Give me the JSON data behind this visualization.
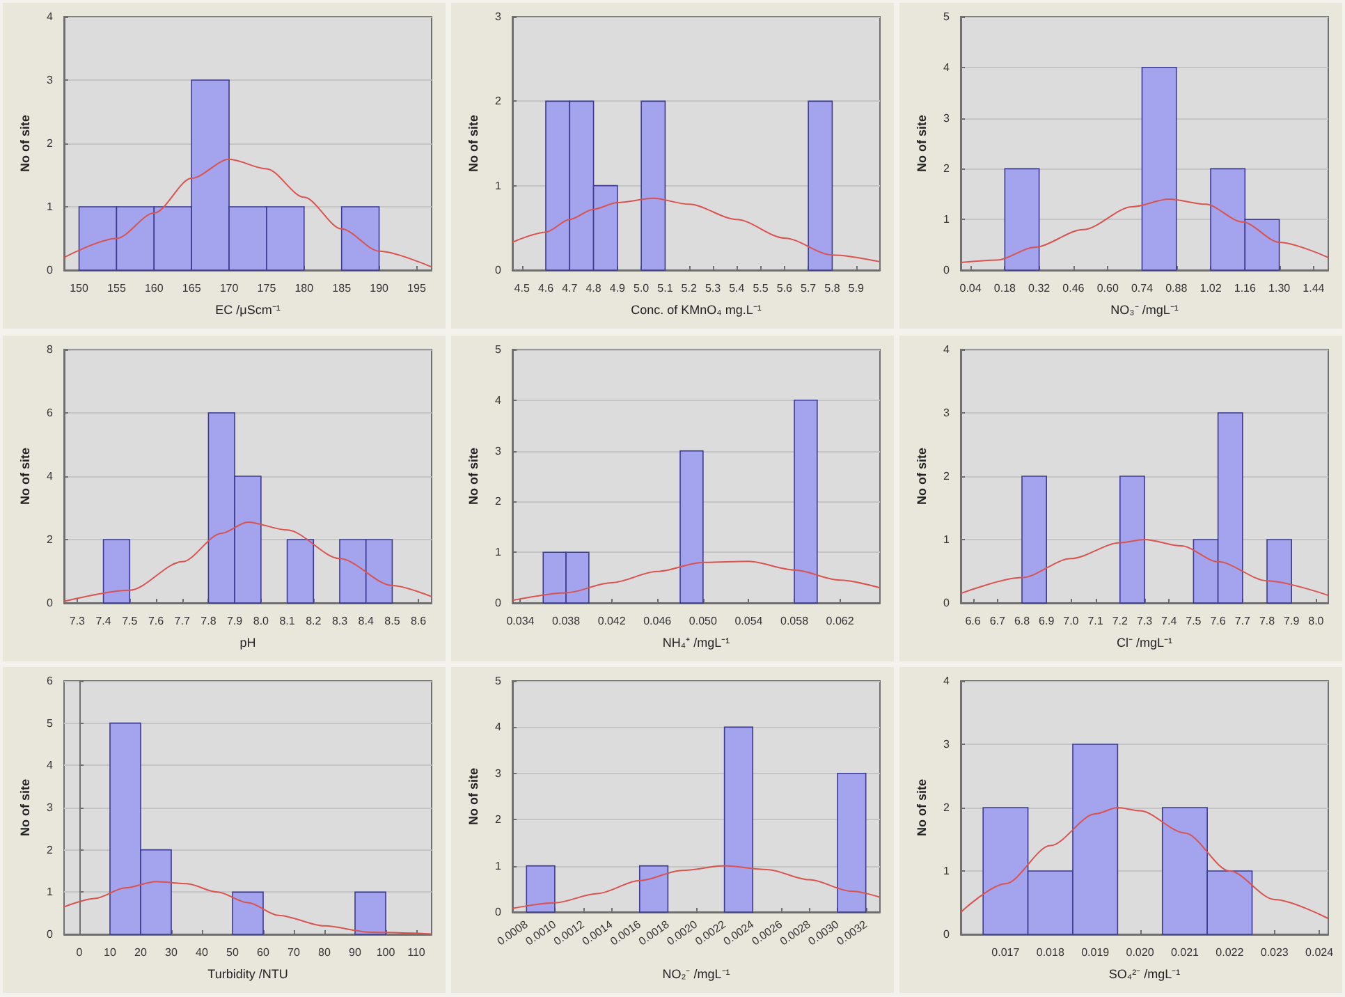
{
  "chart_data": [
    {
      "type": "histogram",
      "xlabel": "EC /μScm⁻¹",
      "ylabel": "No of site",
      "grid": "y",
      "xlim": [
        148,
        197
      ],
      "xticks": [
        150,
        155,
        160,
        165,
        170,
        175,
        180,
        185,
        190,
        195
      ],
      "ylim": [
        0,
        4
      ],
      "yticks": [
        0,
        1,
        2,
        3,
        4
      ],
      "series": [
        {
          "type": "histogram",
          "color": "#a3a3ee",
          "bins": [
            150,
            155,
            160,
            165,
            170,
            175,
            180,
            185,
            190
          ],
          "values": [
            1,
            1,
            1,
            3,
            1,
            1,
            0,
            1
          ]
        },
        {
          "type": "line",
          "color": "#d9534f",
          "x": [
            148,
            155,
            160,
            165,
            170,
            175,
            180,
            185,
            190,
            197
          ],
          "values": [
            0.2,
            0.5,
            0.9,
            1.45,
            1.75,
            1.6,
            1.15,
            0.65,
            0.3,
            0.05
          ]
        }
      ]
    },
    {
      "type": "histogram",
      "xlabel": "Conc. of KMnO₄ mg.L⁻¹",
      "ylabel": "No of site",
      "grid": "y",
      "xlim": [
        4.46,
        6.0
      ],
      "xticks": [
        4.5,
        4.6,
        4.7,
        4.8,
        4.9,
        {
          "value": 5,
          "label": "5.0"
        },
        5.1,
        5.2,
        5.3,
        5.4,
        5.5,
        5.6,
        5.7,
        5.8,
        5.9
      ],
      "ylim": [
        0,
        3
      ],
      "yticks": [
        0,
        1,
        2,
        3
      ],
      "series": [
        {
          "type": "histogram",
          "color": "#a3a3ee",
          "bins": [
            4.6,
            4.7,
            4.8,
            4.9,
            5.0,
            5.1,
            5.2,
            5.3,
            5.4,
            5.5,
            5.6,
            5.7,
            5.8
          ],
          "values": [
            2,
            2,
            1,
            0,
            2,
            0,
            0,
            0,
            0,
            0,
            0,
            2
          ]
        },
        {
          "type": "line",
          "color": "#d9534f",
          "x": [
            4.46,
            4.6,
            4.7,
            4.8,
            4.9,
            5.05,
            5.2,
            5.4,
            5.6,
            5.8,
            6.0
          ],
          "values": [
            0.33,
            0.45,
            0.6,
            0.72,
            0.8,
            0.85,
            0.78,
            0.6,
            0.38,
            0.18,
            0.1
          ]
        }
      ]
    },
    {
      "type": "histogram",
      "xlabel": "NO₃⁻ /mgL⁻¹",
      "ylabel": "No of site",
      "grid": "y",
      "xlim": [
        0,
        1.5
      ],
      "xticks": [
        0.04,
        0.18,
        0.32,
        0.46,
        {
          "value": 0.6,
          "label": "0.60"
        },
        0.74,
        0.88,
        1.02,
        1.16,
        {
          "value": 1.3,
          "label": "1.30"
        },
        1.44
      ],
      "ylim": [
        0,
        5
      ],
      "yticks": [
        0,
        1,
        2,
        3,
        4,
        5
      ],
      "series": [
        {
          "type": "histogram",
          "color": "#a3a3ee",
          "bins": [
            0.18,
            0.32,
            0.46,
            0.6,
            0.74,
            0.88,
            1.02,
            1.16,
            1.3
          ],
          "values": [
            2,
            0,
            0,
            0,
            4,
            0,
            2,
            1
          ]
        },
        {
          "type": "line",
          "color": "#d9534f",
          "x": [
            0,
            0.15,
            0.3,
            0.5,
            0.7,
            0.85,
            1.0,
            1.15,
            1.3,
            1.5
          ],
          "values": [
            0.15,
            0.2,
            0.45,
            0.8,
            1.25,
            1.4,
            1.3,
            0.95,
            0.55,
            0.25
          ]
        }
      ]
    },
    {
      "type": "histogram",
      "xlabel": "pH",
      "ylabel": "No of site",
      "grid": "y",
      "xlim": [
        7.25,
        8.65
      ],
      "xticks": [
        7.3,
        7.4,
        7.5,
        7.6,
        7.7,
        7.8,
        7.9,
        {
          "value": 8,
          "label": "8.0"
        },
        8.1,
        8.2,
        8.3,
        8.4,
        8.5,
        8.6
      ],
      "ylim": [
        0,
        8
      ],
      "yticks": [
        0,
        2,
        4,
        6,
        8
      ],
      "series": [
        {
          "type": "histogram",
          "color": "#a3a3ee",
          "bins": [
            7.4,
            7.5,
            7.6,
            7.7,
            7.8,
            7.9,
            8.0,
            8.1,
            8.2,
            8.3,
            8.4,
            8.5
          ],
          "values": [
            2,
            0,
            0,
            0,
            6,
            4,
            0,
            2,
            0,
            2,
            2
          ]
        },
        {
          "type": "line",
          "color": "#d9534f",
          "x": [
            7.25,
            7.5,
            7.7,
            7.85,
            7.95,
            8.1,
            8.3,
            8.5,
            8.65
          ],
          "values": [
            0.05,
            0.4,
            1.3,
            2.2,
            2.55,
            2.3,
            1.4,
            0.55,
            0.2
          ]
        }
      ]
    },
    {
      "type": "histogram",
      "xlabel": "NH₄⁺ /mgL⁻¹",
      "ylabel": "No of site",
      "grid": "y",
      "xlim": [
        0.0333,
        0.0655
      ],
      "xticks": [
        0.034,
        0.038,
        0.042,
        0.046,
        {
          "value": 0.05,
          "label": "0.050"
        },
        0.054,
        0.058,
        0.062
      ],
      "ylim": [
        0,
        5
      ],
      "yticks": [
        0,
        1,
        2,
        3,
        4,
        5
      ],
      "series": [
        {
          "type": "histogram",
          "color": "#a3a3ee",
          "bins": [
            0.036,
            0.038,
            0.04,
            0.042,
            0.044,
            0.046,
            0.048,
            0.05,
            0.052,
            0.054,
            0.056,
            0.058,
            0.06
          ],
          "values": [
            1,
            1,
            0,
            0,
            0,
            0,
            3,
            0,
            0,
            0,
            0,
            4
          ]
        },
        {
          "type": "line",
          "color": "#d9534f",
          "x": [
            0.0333,
            0.038,
            0.042,
            0.046,
            0.05,
            0.054,
            0.058,
            0.062,
            0.0655
          ],
          "values": [
            0.05,
            0.2,
            0.4,
            0.62,
            0.8,
            0.82,
            0.65,
            0.45,
            0.3
          ]
        }
      ]
    },
    {
      "type": "histogram",
      "xlabel": "Cl⁻ /mgL⁻¹",
      "ylabel": "No of site",
      "grid": "y",
      "xlim": [
        6.55,
        8.05
      ],
      "xticks": [
        6.6,
        6.7,
        6.8,
        6.9,
        {
          "value": 7,
          "label": "7.0"
        },
        7.1,
        7.2,
        7.3,
        7.4,
        7.5,
        7.6,
        7.7,
        7.8,
        7.9,
        {
          "value": 8,
          "label": "8.0"
        }
      ],
      "ylim": [
        0,
        4
      ],
      "yticks": [
        0,
        1,
        2,
        3,
        4
      ],
      "series": [
        {
          "type": "histogram",
          "color": "#a3a3ee",
          "bins": [
            6.8,
            6.9,
            7.0,
            7.1,
            7.2,
            7.3,
            7.4,
            7.5,
            7.6,
            7.7,
            7.8,
            7.9
          ],
          "values": [
            2,
            0,
            0,
            0,
            2,
            0,
            0,
            1,
            3,
            0,
            1
          ]
        },
        {
          "type": "line",
          "color": "#d9534f",
          "x": [
            6.55,
            6.8,
            7.0,
            7.2,
            7.3,
            7.45,
            7.6,
            7.8,
            8.05
          ],
          "values": [
            0.15,
            0.4,
            0.7,
            0.95,
            1.0,
            0.9,
            0.65,
            0.35,
            0.12
          ]
        }
      ]
    },
    {
      "type": "histogram",
      "xlabel": "Turbidity /NTU",
      "ylabel": "No of site",
      "grid": "y",
      "xlim": [
        -5,
        115
      ],
      "xticks": [
        0,
        10,
        20,
        30,
        40,
        50,
        60,
        70,
        80,
        90,
        100,
        110
      ],
      "ylim": [
        0,
        6
      ],
      "yticks": [
        0,
        1,
        2,
        3,
        4,
        5,
        6
      ],
      "series": [
        {
          "type": "histogram",
          "color": "#a3a3ee",
          "bins": [
            10,
            20,
            30,
            40,
            50,
            60,
            70,
            80,
            90,
            100
          ],
          "values": [
            5,
            2,
            0,
            0,
            1,
            0,
            0,
            0,
            1
          ]
        },
        {
          "type": "line",
          "color": "#d9534f",
          "x": [
            -5,
            5,
            15,
            25,
            35,
            45,
            55,
            65,
            80,
            95,
            115
          ],
          "values": [
            0.65,
            0.85,
            1.1,
            1.25,
            1.2,
            1.0,
            0.75,
            0.45,
            0.2,
            0.05,
            0.01
          ]
        }
      ]
    },
    {
      "type": "histogram",
      "xlabel": "NO₂⁻ /mgL⁻¹",
      "ylabel": "No of site",
      "grid": "y",
      "xlim": [
        0.0007,
        0.0033
      ],
      "xticks": [
        0.0008,
        {
          "value": 0.001,
          "label": "0.0010"
        },
        0.0012,
        0.0014,
        0.0016,
        0.0018,
        {
          "value": 0.002,
          "label": "0.0020"
        },
        0.0022,
        0.0024,
        0.0026,
        0.0028,
        {
          "value": 0.003,
          "label": "0.0030"
        },
        0.0032
      ],
      "ylim": [
        0,
        5
      ],
      "yticks": [
        0,
        1,
        2,
        3,
        4,
        5
      ],
      "series": [
        {
          "type": "histogram",
          "color": "#a3a3ee",
          "bins": [
            0.0008,
            0.001,
            0.0012,
            0.0014,
            0.0016,
            0.0018,
            0.002,
            0.0022,
            0.0024,
            0.0026,
            0.0028,
            0.003,
            0.0032
          ],
          "values": [
            1,
            0,
            0,
            0,
            1,
            0,
            0,
            4,
            0,
            0,
            0,
            3
          ]
        },
        {
          "type": "line",
          "color": "#d9534f",
          "x": [
            0.0007,
            0.001,
            0.0013,
            0.0016,
            0.0019,
            0.0022,
            0.0025,
            0.0028,
            0.0031,
            0.0033
          ],
          "values": [
            0.08,
            0.2,
            0.4,
            0.68,
            0.9,
            1.0,
            0.92,
            0.7,
            0.45,
            0.32
          ]
        }
      ]
    },
    {
      "type": "histogram",
      "xlabel": "SO₄²⁻ /mgL⁻¹",
      "ylabel": "No of site",
      "grid": "y",
      "xlim": [
        0.016,
        0.0242
      ],
      "xticks": [
        0.017,
        0.018,
        0.019,
        {
          "value": 0.02,
          "label": "0.020"
        },
        0.021,
        0.022,
        0.023,
        0.024
      ],
      "ylim": [
        0,
        4
      ],
      "yticks": [
        0,
        1,
        2,
        3,
        4
      ],
      "series": [
        {
          "type": "histogram",
          "color": "#a3a3ee",
          "bins": [
            0.0165,
            0.0175,
            0.0185,
            0.0195,
            0.0205,
            0.0215,
            0.0225
          ],
          "values": [
            2,
            1,
            3,
            0,
            2,
            1
          ]
        },
        {
          "type": "line",
          "color": "#d9534f",
          "x": [
            0.016,
            0.017,
            0.018,
            0.019,
            0.0195,
            0.02,
            0.021,
            0.022,
            0.023,
            0.0242
          ],
          "values": [
            0.35,
            0.8,
            1.4,
            1.9,
            2.0,
            1.95,
            1.6,
            1.0,
            0.55,
            0.25
          ]
        }
      ]
    }
  ]
}
